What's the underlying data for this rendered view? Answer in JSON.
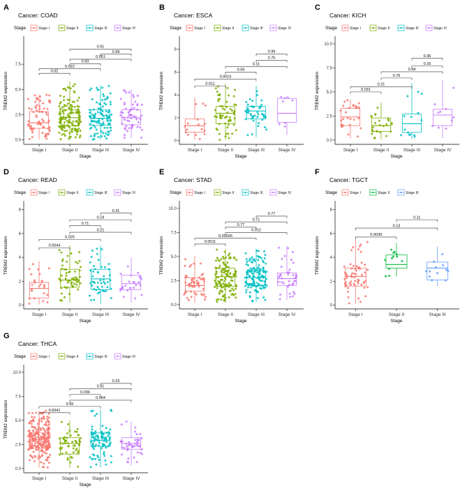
{
  "figure": {
    "stage_label": "Stage",
    "stage_colors": [
      "#F8766D",
      "#7CAE00",
      "#00BFC4",
      "#C77CFF"
    ],
    "stage_colors_3": [
      "#F8766D",
      "#00BA38",
      "#619CFF"
    ]
  },
  "chart_data": [
    {
      "type": "boxplot",
      "panel_letter": "A",
      "title": "Cancer: COAD",
      "legend_title": "Stage",
      "legend": [
        "Stage I",
        "Stage II",
        "Stage III",
        "Stage IV"
      ],
      "categories": [
        "Stage I",
        "Stage II",
        "Stage III",
        "Stage IV"
      ],
      "xlabel": "Stage",
      "ylabel": "TREM2 expression",
      "ylim": [
        -0.3,
        10.0
      ],
      "yticks": [
        0.0,
        2.5,
        5.0,
        7.5
      ],
      "ytick_labels": [
        "0.0",
        "2.5",
        "5.0",
        "7.5"
      ],
      "boxes": [
        {
          "q1": 1.15,
          "median": 1.7,
          "q3": 2.8,
          "wlo": 0.05,
          "whi": 4.5,
          "n": 70
        },
        {
          "q1": 1.4,
          "median": 2.2,
          "q3": 3.0,
          "wlo": 0.05,
          "whi": 5.8,
          "n": 150
        },
        {
          "q1": 1.45,
          "median": 2.15,
          "q3": 3.0,
          "wlo": 0.05,
          "whi": 5.4,
          "n": 110
        },
        {
          "q1": 1.5,
          "median": 2.2,
          "q3": 3.0,
          "wlo": 0.2,
          "whi": 5.0,
          "n": 60
        }
      ],
      "comparisons": [
        {
          "a": 1,
          "b": 2,
          "y": 6.6,
          "p": "0.02"
        },
        {
          "a": 1,
          "b": 3,
          "y": 7.05,
          "p": "0.022"
        },
        {
          "a": 2,
          "b": 3,
          "y": 7.55,
          "p": "0.93"
        },
        {
          "a": 2,
          "b": 4,
          "y": 8.0,
          "p": "0.051"
        },
        {
          "a": 3,
          "b": 4,
          "y": 8.5,
          "p": "0.99"
        },
        {
          "a": 2,
          "b": 4,
          "y": 9.0,
          "p": "0.91"
        }
      ]
    },
    {
      "type": "boxplot",
      "panel_letter": "B",
      "title": "Cancer: ESCA",
      "legend_title": "Stage",
      "legend": [
        "Stage I",
        "Stage II",
        "Stage III",
        "Stage IV"
      ],
      "categories": [
        "Stage I",
        "Stage II",
        "Stage III",
        "Stage IV"
      ],
      "xlabel": "Stage",
      "ylabel": "TREM2 expression",
      "ylim": [
        -0.2,
        8.9
      ],
      "yticks": [
        0,
        2,
        4,
        6,
        8
      ],
      "ytick_labels": [
        "0",
        "2",
        "4",
        "6",
        "8"
      ],
      "boxes": [
        {
          "q1": 0.75,
          "median": 1.3,
          "q3": 1.9,
          "wlo": 0.1,
          "whi": 3.8,
          "n": 16
        },
        {
          "q1": 1.5,
          "median": 2.4,
          "q3": 3.0,
          "wlo": 0.05,
          "whi": 5.0,
          "n": 60
        },
        {
          "q1": 1.9,
          "median": 2.6,
          "q3": 3.0,
          "wlo": 0.3,
          "whi": 4.8,
          "n": 45
        },
        {
          "q1": 1.6,
          "median": 2.4,
          "q3": 3.7,
          "wlo": 0.5,
          "whi": 3.9,
          "n": 8
        }
      ],
      "comparisons": [
        {
          "a": 1,
          "b": 2,
          "y": 4.8,
          "p": "0.011"
        },
        {
          "a": 1,
          "b": 3,
          "y": 5.4,
          "p": "0.0016"
        },
        {
          "a": 2,
          "b": 3,
          "y": 6.0,
          "p": "0.59"
        },
        {
          "a": 2,
          "b": 4,
          "y": 6.5,
          "p": "0.11"
        },
        {
          "a": 3,
          "b": 4,
          "y": 7.05,
          "p": "0.75"
        },
        {
          "a": 3,
          "b": 4,
          "y": 7.6,
          "p": "0.99"
        }
      ]
    },
    {
      "type": "boxplot",
      "panel_letter": "C",
      "title": "Cancer: KICH",
      "legend_title": "Stage",
      "legend": [
        "Stage I",
        "Stage II",
        "Stage III",
        "Stage IV"
      ],
      "categories": [
        "Stage I",
        "Stage II",
        "Stage III",
        "Stage IV"
      ],
      "xlabel": "Stage",
      "ylabel": "TREM2 expression",
      "ylim": [
        -0.3,
        10.5
      ],
      "yticks": [
        0.0,
        2.5,
        5.0,
        7.5,
        10.0
      ],
      "ytick_labels": [
        "0.0",
        "2.5",
        "5.0",
        "7.5",
        "10.0"
      ],
      "boxes": [
        {
          "q1": 1.5,
          "median": 2.4,
          "q3": 3.3,
          "wlo": 0.2,
          "whi": 4.2,
          "n": 27
        },
        {
          "q1": 0.9,
          "median": 1.5,
          "q3": 2.3,
          "wlo": 0.1,
          "whi": 3.9,
          "n": 25
        },
        {
          "q1": 0.8,
          "median": 1.7,
          "q3": 2.7,
          "wlo": 0.1,
          "whi": 5.9,
          "n": 14
        },
        {
          "q1": 1.5,
          "median": 2.6,
          "q3": 3.2,
          "wlo": 0.2,
          "whi": 6.2,
          "n": 10
        }
      ],
      "comparisons": [
        {
          "a": 1,
          "b": 2,
          "y": 5.0,
          "p": "0.031"
        },
        {
          "a": 1,
          "b": 3,
          "y": 5.55,
          "p": "0.21"
        },
        {
          "a": 2,
          "b": 3,
          "y": 6.45,
          "p": "0.76"
        },
        {
          "a": 2,
          "b": 4,
          "y": 7.1,
          "p": "0.94"
        },
        {
          "a": 3,
          "b": 4,
          "y": 7.7,
          "p": "0.16"
        },
        {
          "a": 3,
          "b": 4,
          "y": 8.5,
          "p": "0.36"
        }
      ]
    },
    {
      "type": "boxplot",
      "panel_letter": "D",
      "title": "Cancer: READ",
      "legend_title": "Stage",
      "legend": [
        "Stage I",
        "Stage II",
        "Stage III",
        "Stage IV"
      ],
      "categories": [
        "Stage I",
        "Stage II",
        "Stage III",
        "Stage IV"
      ],
      "xlabel": "Stage",
      "ylabel": "TREM2 expression",
      "ylim": [
        -0.2,
        8.5
      ],
      "yticks": [
        0,
        2,
        4,
        6,
        8
      ],
      "ytick_labels": [
        "0",
        "2",
        "4",
        "6",
        "8"
      ],
      "boxes": [
        {
          "q1": 0.6,
          "median": 1.4,
          "q3": 1.9,
          "wlo": 0.05,
          "whi": 3.7,
          "n": 25
        },
        {
          "q1": 1.5,
          "median": 2.1,
          "q3": 3.0,
          "wlo": 0.2,
          "whi": 5.0,
          "n": 60
        },
        {
          "q1": 1.3,
          "median": 2.2,
          "q3": 3.0,
          "wlo": 0.1,
          "whi": 5.0,
          "n": 50
        },
        {
          "q1": 1.3,
          "median": 1.8,
          "q3": 2.5,
          "wlo": 0.2,
          "whi": 4.0,
          "n": 25
        }
      ],
      "comparisons": [
        {
          "a": 1,
          "b": 2,
          "y": 4.8,
          "p": "0.0044"
        },
        {
          "a": 1,
          "b": 3,
          "y": 5.5,
          "p": "0.025"
        },
        {
          "a": 2,
          "b": 4,
          "y": 6.1,
          "p": "0.21"
        },
        {
          "a": 2,
          "b": 3,
          "y": 6.65,
          "p": "0.71"
        },
        {
          "a": 2,
          "b": 4,
          "y": 7.15,
          "p": "0.19"
        },
        {
          "a": 3,
          "b": 4,
          "y": 7.7,
          "p": "0.31"
        }
      ]
    },
    {
      "type": "boxplot",
      "panel_letter": "E",
      "title": "Cancer: STAD",
      "legend_title": "Stage",
      "legend": [
        "Stage I",
        "Stage II",
        "Stage III",
        "Stage IV"
      ],
      "categories": [
        "Stage I",
        "Stage II",
        "Stage III",
        "Stage IV"
      ],
      "xlabel": "Stage",
      "ylabel": "TREM2 expression",
      "ylim": [
        -0.3,
        10.5
      ],
      "yticks": [
        0.0,
        2.5,
        5.0,
        7.5,
        10.0
      ],
      "ytick_labels": [
        "0.0",
        "2.5",
        "5.0",
        "7.5",
        "10.0"
      ],
      "boxes": [
        {
          "q1": 1.4,
          "median": 2.0,
          "q3": 2.8,
          "wlo": 0.2,
          "whi": 5.1,
          "n": 55
        },
        {
          "q1": 1.9,
          "median": 2.9,
          "q3": 3.8,
          "wlo": 0.2,
          "whi": 5.8,
          "n": 130
        },
        {
          "q1": 2.0,
          "median": 2.8,
          "q3": 3.5,
          "wlo": 0.3,
          "whi": 5.8,
          "n": 140
        },
        {
          "q1": 2.0,
          "median": 2.7,
          "q3": 3.3,
          "wlo": 0.5,
          "whi": 6.1,
          "n": 40
        }
      ],
      "comparisons": [
        {
          "a": 1,
          "b": 2,
          "y": 6.3,
          "p": "0.0011"
        },
        {
          "a": 1,
          "b": 3,
          "y": 6.9,
          "p": "0.00026"
        },
        {
          "a": 2,
          "b": 4,
          "y": 7.5,
          "p": "0.012"
        },
        {
          "a": 2,
          "b": 3,
          "y": 8.05,
          "p": "0.77"
        },
        {
          "a": 2,
          "b": 4,
          "y": 8.6,
          "p": "0.71"
        },
        {
          "a": 3,
          "b": 4,
          "y": 9.2,
          "p": "0.77"
        }
      ]
    },
    {
      "type": "boxplot",
      "panel_letter": "F",
      "title": "Cancer: TGCT",
      "legend_title": "Stage",
      "legend": [
        "Stage I",
        "Stage II",
        "Stage III"
      ],
      "categories": [
        "Stage I",
        "Stage II",
        "Stage III"
      ],
      "xlabel": "Stage",
      "ylabel": "TREM2 expression",
      "ylim": [
        -0.2,
        8.5
      ],
      "yticks": [
        0,
        2,
        4,
        6,
        8
      ],
      "ytick_labels": [
        "0",
        "2",
        "4",
        "6",
        "8"
      ],
      "boxes": [
        {
          "q1": 1.6,
          "median": 2.4,
          "q3": 3.1,
          "wlo": 0.1,
          "whi": 5.5,
          "n": 60
        },
        {
          "q1": 3.1,
          "median": 3.4,
          "q3": 4.2,
          "wlo": 2.4,
          "whi": 5.2,
          "n": 12
        },
        {
          "q1": 2.1,
          "median": 3.1,
          "q3": 3.6,
          "wlo": 1.6,
          "whi": 4.9,
          "n": 12
        }
      ],
      "comparisons": [
        {
          "a": 1,
          "b": 2,
          "y": 5.7,
          "p": "0.0039"
        },
        {
          "a": 1,
          "b": 3,
          "y": 6.45,
          "p": "0.13"
        },
        {
          "a": 2,
          "b": 3,
          "y": 7.15,
          "p": "0.11"
        }
      ]
    },
    {
      "type": "boxplot",
      "panel_letter": "G",
      "title": "Cancer: THCA",
      "legend_title": "Stage",
      "legend": [
        "Stage I",
        "Stage II",
        "Stage III",
        "Stage IV"
      ],
      "categories": [
        "Stage I",
        "Stage II",
        "Stage III",
        "Stage IV"
      ],
      "xlabel": "Stage",
      "ylabel": "TREM2 expression",
      "ylim": [
        -0.3,
        10.5
      ],
      "yticks": [
        0.0,
        2.5,
        5.0,
        7.5,
        10.0
      ],
      "ytick_labels": [
        "0.0",
        "2.5",
        "5.0",
        "7.5",
        "10.0"
      ],
      "boxes": [
        {
          "q1": 2.1,
          "median": 2.8,
          "q3": 3.7,
          "wlo": 0.1,
          "whi": 6.0,
          "n": 240
        },
        {
          "q1": 1.5,
          "median": 2.6,
          "q3": 3.2,
          "wlo": 0.1,
          "whi": 5.0,
          "n": 55
        },
        {
          "q1": 2.3,
          "median": 2.9,
          "q3": 3.7,
          "wlo": 0.1,
          "whi": 6.1,
          "n": 95
        },
        {
          "q1": 2.0,
          "median": 2.6,
          "q3": 3.2,
          "wlo": 0.3,
          "whi": 4.9,
          "n": 45
        }
      ],
      "comparisons": [
        {
          "a": 1,
          "b": 2,
          "y": 5.8,
          "p": "0.0041"
        },
        {
          "a": 1,
          "b": 3,
          "y": 6.45,
          "p": "0.55"
        },
        {
          "a": 2,
          "b": 4,
          "y": 7.1,
          "p": "0.064"
        },
        {
          "a": 2,
          "b": 3,
          "y": 7.7,
          "p": "0.036"
        },
        {
          "a": 2,
          "b": 4,
          "y": 8.3,
          "p": "0.31"
        },
        {
          "a": 3,
          "b": 4,
          "y": 8.85,
          "p": "0.23"
        }
      ]
    }
  ]
}
